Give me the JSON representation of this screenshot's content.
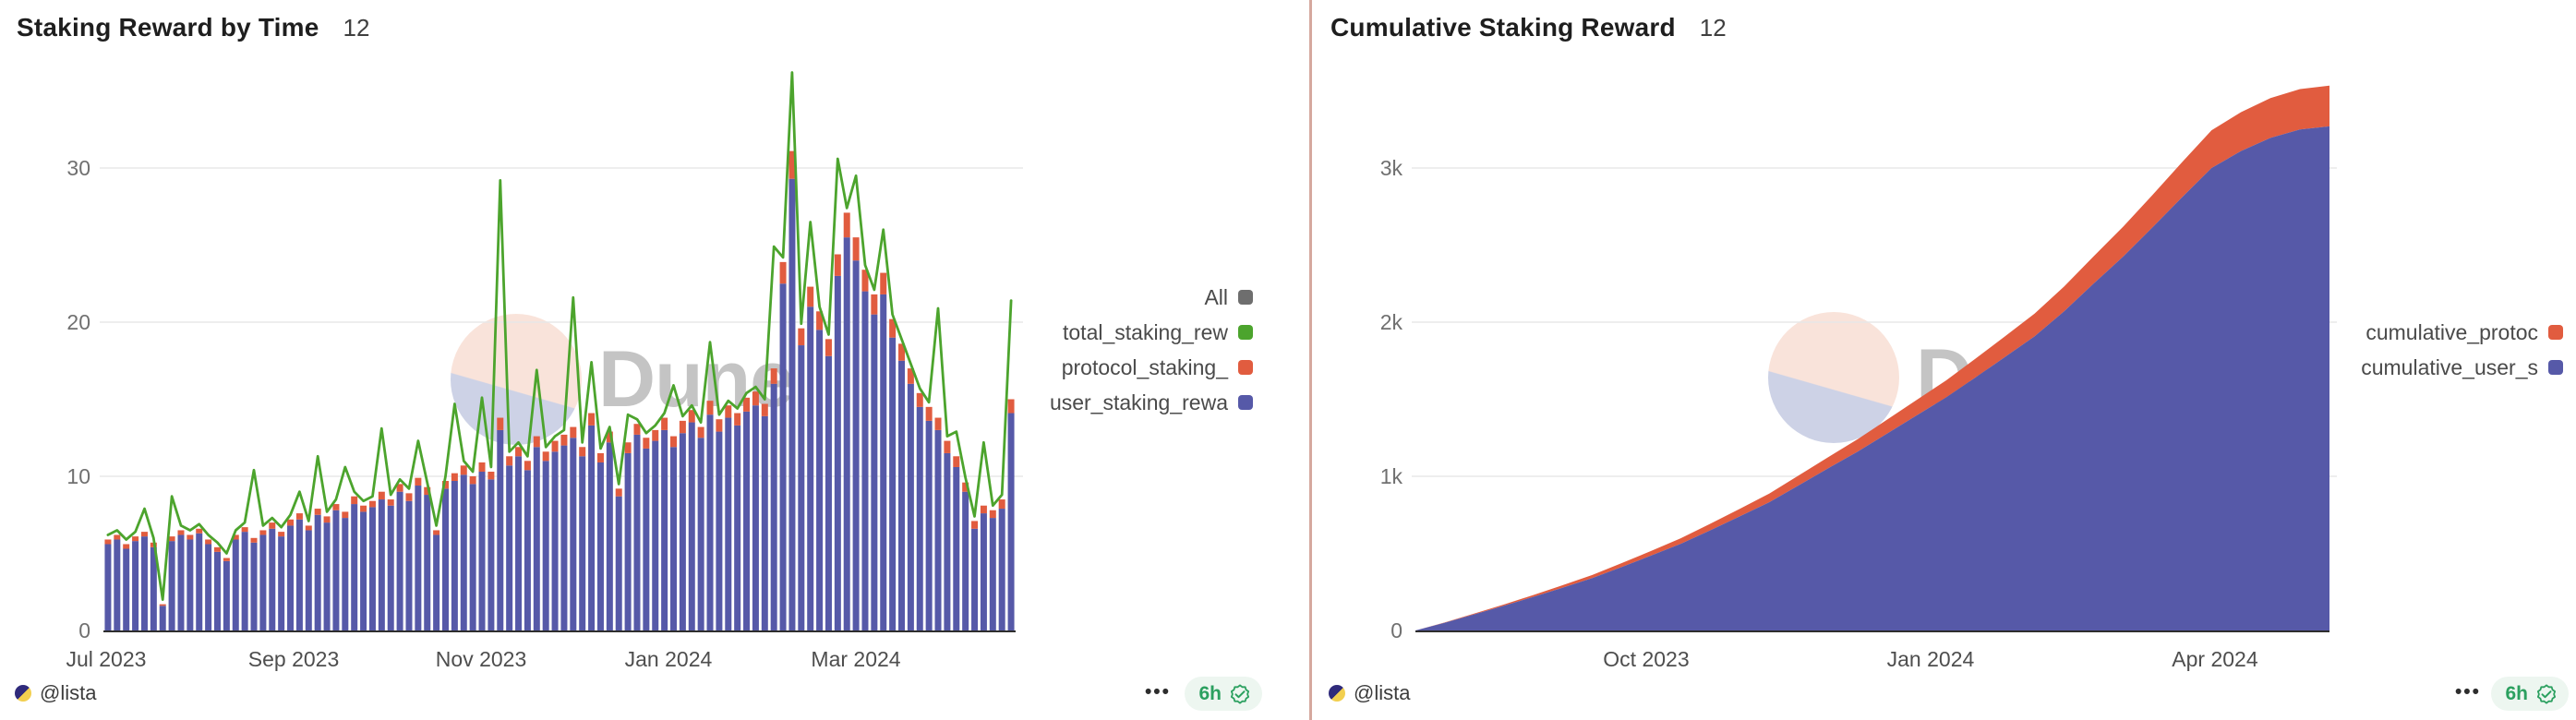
{
  "panels": [
    {
      "title": "Staking Reward by Time",
      "counter": "12",
      "watermark": "Dune",
      "legend": [
        {
          "label": "All",
          "color": "#6E6E6E"
        },
        {
          "label": "total_staking_rew",
          "color": "#4CA42D"
        },
        {
          "label": "protocol_staking_",
          "color": "#E15C3F"
        },
        {
          "label": "user_staking_rewa",
          "color": "#5659A8"
        }
      ],
      "footer": {
        "author": "@lista",
        "menu_icon": "•••",
        "refresh_label": "6h"
      }
    },
    {
      "title": "Cumulative Staking Reward",
      "counter": "12",
      "watermark": "Dune",
      "legend": [
        {
          "label": "cumulative_protoc",
          "color": "#E15C3F"
        },
        {
          "label": "cumulative_user_s",
          "color": "#5659A8"
        }
      ],
      "footer": {
        "author": "@lista",
        "menu_icon": "•••",
        "refresh_label": "6h"
      }
    }
  ],
  "chart_data": [
    {
      "type": "bar",
      "title": "Staking Reward by Time",
      "x_start": "2023-07-01",
      "x_step_days": 3,
      "xlabel": "",
      "ylabel": "",
      "ylim": [
        0,
        37
      ],
      "yticks": [
        0,
        10,
        20,
        30
      ],
      "ytick_labels": [
        "0",
        "10",
        "20",
        "30"
      ],
      "xtick_labels": [
        "Jul 2023",
        "Sep 2023",
        "Nov 2023",
        "Jan 2024",
        "Mar 2024"
      ],
      "grid": true,
      "legend_position": "right",
      "series": [
        {
          "name": "user_staking_reward",
          "render": "stacked-bar",
          "color": "#5659A8",
          "values": [
            5.6,
            5.9,
            5.3,
            5.8,
            6.1,
            5.4,
            1.6,
            5.8,
            6.2,
            5.9,
            6.3,
            5.6,
            5.1,
            4.5,
            5.9,
            6.4,
            5.7,
            6.2,
            6.6,
            6.1,
            6.8,
            7.2,
            6.5,
            7.5,
            7.0,
            7.8,
            7.3,
            8.2,
            7.7,
            8.0,
            8.5,
            8.1,
            9.0,
            8.4,
            9.4,
            8.8,
            6.2,
            9.2,
            9.7,
            10.1,
            9.5,
            10.3,
            9.8,
            13.0,
            10.7,
            11.3,
            10.4,
            11.9,
            11.0,
            11.6,
            12.0,
            12.5,
            11.3,
            13.3,
            10.9,
            12.2,
            8.7,
            11.5,
            12.7,
            11.8,
            12.3,
            13.0,
            11.9,
            12.8,
            13.5,
            12.5,
            14.0,
            12.9,
            13.8,
            13.3,
            14.2,
            14.6,
            13.9,
            16.0,
            22.5,
            29.3,
            18.5,
            21.0,
            19.5,
            17.8,
            23.0,
            25.5,
            24.0,
            22.0,
            20.5,
            21.8,
            19.0,
            17.5,
            16.0,
            14.5,
            13.6,
            13.0,
            11.5,
            10.6,
            9.0,
            6.6,
            7.6,
            7.3,
            7.9,
            14.1
          ]
        },
        {
          "name": "protocol_staking_reward",
          "render": "stacked-bar",
          "color": "#E15C3F",
          "values": [
            0.3,
            0.3,
            0.3,
            0.3,
            0.3,
            0.3,
            0.1,
            0.3,
            0.3,
            0.3,
            0.3,
            0.3,
            0.3,
            0.2,
            0.3,
            0.3,
            0.3,
            0.3,
            0.4,
            0.3,
            0.4,
            0.4,
            0.3,
            0.4,
            0.4,
            0.4,
            0.4,
            0.5,
            0.4,
            0.4,
            0.5,
            0.4,
            0.5,
            0.5,
            0.5,
            0.5,
            0.3,
            0.5,
            0.5,
            0.6,
            0.5,
            0.6,
            0.5,
            0.8,
            0.6,
            0.6,
            0.6,
            0.7,
            0.6,
            0.7,
            0.7,
            0.7,
            0.6,
            0.8,
            0.6,
            0.7,
            0.5,
            0.7,
            0.7,
            0.7,
            0.7,
            0.8,
            0.7,
            0.8,
            0.8,
            0.7,
            0.9,
            0.8,
            0.8,
            0.8,
            0.9,
            0.9,
            0.8,
            1.0,
            1.4,
            1.8,
            1.1,
            1.3,
            1.2,
            1.1,
            1.4,
            1.6,
            1.5,
            1.4,
            1.3,
            1.4,
            1.2,
            1.1,
            1.0,
            0.9,
            0.9,
            0.8,
            0.8,
            0.7,
            0.6,
            0.5,
            0.5,
            0.5,
            0.6,
            0.9
          ]
        },
        {
          "name": "total_staking_reward",
          "render": "line",
          "color": "#4CA42D",
          "values": [
            6.2,
            6.5,
            5.9,
            6.4,
            7.9,
            6.0,
            2.0,
            8.7,
            6.8,
            6.5,
            6.9,
            6.2,
            5.7,
            5.0,
            6.5,
            7.0,
            10.4,
            6.8,
            7.3,
            6.7,
            7.5,
            9.0,
            7.1,
            11.3,
            7.7,
            8.5,
            10.6,
            9.0,
            8.4,
            8.7,
            13.1,
            8.8,
            9.8,
            9.2,
            12.3,
            9.6,
            6.8,
            10.0,
            14.7,
            11.0,
            10.3,
            15.1,
            10.6,
            29.2,
            11.6,
            12.2,
            11.3,
            16.9,
            11.9,
            12.6,
            13.0,
            21.6,
            12.2,
            17.4,
            11.8,
            13.2,
            9.5,
            14.0,
            13.7,
            12.8,
            13.3,
            14.1,
            15.9,
            13.9,
            14.6,
            13.5,
            18.7,
            14.0,
            14.9,
            14.4,
            15.4,
            15.8,
            15.0,
            24.9,
            24.2,
            36.2,
            19.9,
            26.5,
            21.0,
            19.2,
            30.6,
            27.4,
            29.5,
            23.7,
            22.1,
            26.0,
            20.5,
            18.9,
            17.3,
            15.7,
            14.8,
            20.9,
            12.6,
            12.9,
            9.9,
            7.4,
            12.2,
            8.1,
            8.8,
            21.4
          ]
        }
      ]
    },
    {
      "type": "area",
      "title": "Cumulative Staking Reward",
      "x_start": "2023-07-01",
      "x_step_days": 10,
      "xlabel": "",
      "ylabel": "",
      "ylim": [
        0,
        3600
      ],
      "yticks": [
        0,
        1000,
        2000,
        3000
      ],
      "ytick_labels": [
        "0",
        "1k",
        "2k",
        "3k"
      ],
      "xtick_labels": [
        "Oct 2023",
        "Jan 2024",
        "Apr 2024"
      ],
      "grid": true,
      "legend_position": "right",
      "series": [
        {
          "name": "cumulative_user_staking_reward",
          "render": "stacked-area",
          "color": "#5659A8",
          "values": [
            0,
            50,
            105,
            160,
            218,
            278,
            340,
            412,
            486,
            562,
            650,
            740,
            832,
            942,
            1052,
            1160,
            1278,
            1395,
            1512,
            1642,
            1775,
            1908,
            2070,
            2250,
            2425,
            2615,
            2810,
            3000,
            3110,
            3195,
            3250,
            3270
          ]
        },
        {
          "name": "cumulative_protocol_staking_reward",
          "render": "stacked-area",
          "color": "#E15C3F",
          "values": [
            0,
            2,
            5,
            8,
            12,
            16,
            20,
            25,
            30,
            36,
            42,
            49,
            56,
            64,
            72,
            81,
            90,
            100,
            110,
            122,
            134,
            147,
            161,
            177,
            194,
            211,
            228,
            245,
            252,
            258,
            262,
            265
          ]
        }
      ]
    }
  ]
}
